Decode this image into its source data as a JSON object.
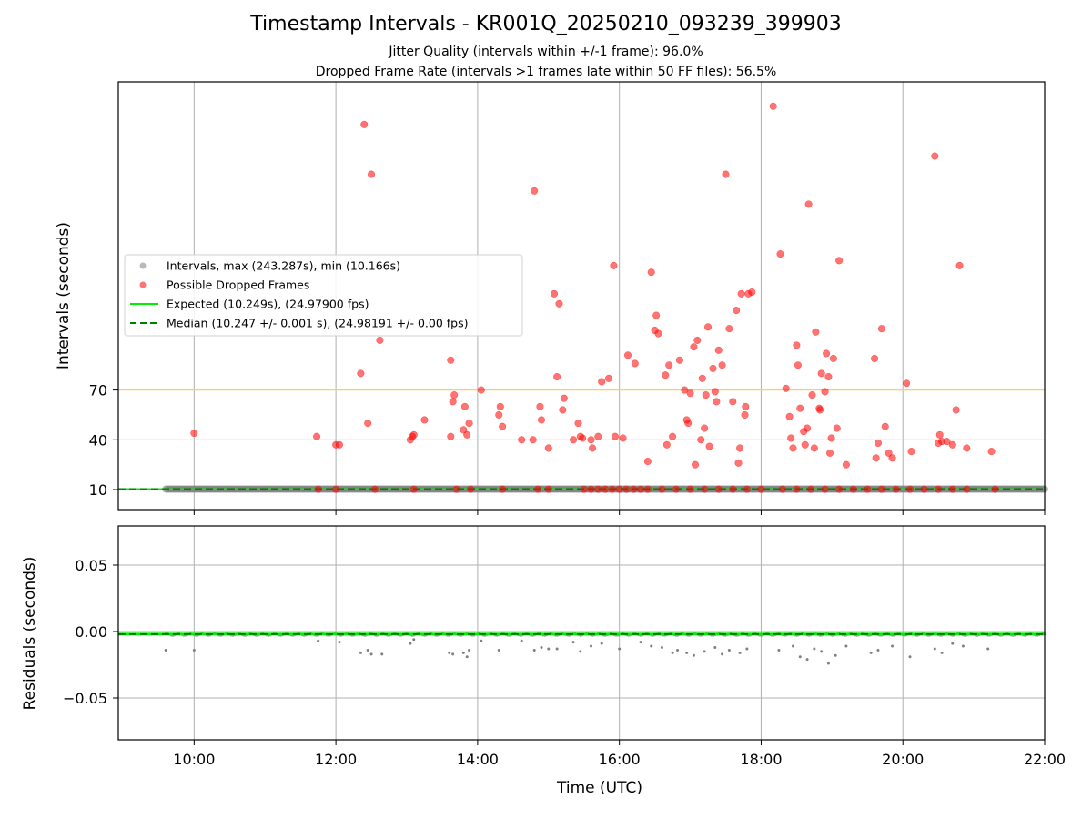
{
  "chart_data": [
    {
      "type": "scatter",
      "title": "Timestamp Intervals - KR001Q_20250210_093239_399903",
      "subtitle_1": "Jitter Quality (intervals within +/-1 frame): 96.0%",
      "subtitle_2": "Dropped Frame Rate (intervals >1 frames late within 50 FF files): 56.5%",
      "ylabel": "Intervals (seconds)",
      "x_range_hours": [
        8.93,
        22.0
      ],
      "ylim": [
        0,
        255
      ],
      "yticks": [
        10,
        40,
        70
      ],
      "threshold_lines": [
        40,
        70
      ],
      "threshold_color": "#ffcc66",
      "legend_placement": "center-left",
      "series": [
        {
          "name": "Intervals, max (243.287s), min (10.166s)",
          "kind": "points",
          "color": "#808080",
          "x_range_hours": [
            9.6,
            22.0
          ],
          "y": 10.249
        },
        {
          "name": "Possible Dropped Frames",
          "kind": "points",
          "color": "#ff0000",
          "points": [
            [
              10.0,
              44
            ],
            [
              11.73,
              42
            ],
            [
              12.0,
              37
            ],
            [
              12.05,
              37
            ],
            [
              12.35,
              80
            ],
            [
              12.4,
              230
            ],
            [
              12.45,
              50
            ],
            [
              12.5,
              200
            ],
            [
              12.62,
              100
            ],
            [
              13.05,
              40
            ],
            [
              13.08,
              42
            ],
            [
              13.1,
              43
            ],
            [
              13.25,
              52
            ],
            [
              13.62,
              42
            ],
            [
              13.62,
              88
            ],
            [
              13.65,
              63
            ],
            [
              13.67,
              67
            ],
            [
              13.8,
              46
            ],
            [
              13.82,
              60
            ],
            [
              13.85,
              43
            ],
            [
              13.88,
              50
            ],
            [
              14.05,
              70
            ],
            [
              14.3,
              55
            ],
            [
              14.32,
              60
            ],
            [
              14.35,
              48
            ],
            [
              14.62,
              40
            ],
            [
              14.78,
              40
            ],
            [
              14.8,
              190
            ],
            [
              14.88,
              60
            ],
            [
              14.9,
              52
            ],
            [
              15.0,
              35
            ],
            [
              15.08,
              128
            ],
            [
              15.12,
              78
            ],
            [
              15.15,
              122
            ],
            [
              15.2,
              58
            ],
            [
              15.22,
              65
            ],
            [
              15.35,
              40
            ],
            [
              15.42,
              50
            ],
            [
              15.45,
              42
            ],
            [
              15.48,
              41
            ],
            [
              15.6,
              40
            ],
            [
              15.62,
              35
            ],
            [
              15.7,
              42
            ],
            [
              15.75,
              75
            ],
            [
              15.85,
              77
            ],
            [
              15.92,
              145
            ],
            [
              15.94,
              42
            ],
            [
              16.05,
              41
            ],
            [
              16.12,
              91
            ],
            [
              16.22,
              86
            ],
            [
              16.4,
              27
            ],
            [
              16.45,
              141
            ],
            [
              16.52,
              115
            ],
            [
              16.5,
              106
            ],
            [
              16.55,
              104
            ],
            [
              16.65,
              79
            ],
            [
              16.67,
              37
            ],
            [
              16.7,
              85
            ],
            [
              16.75,
              42
            ],
            [
              16.85,
              88
            ],
            [
              16.92,
              70
            ],
            [
              16.95,
              52
            ],
            [
              16.97,
              50
            ],
            [
              17.0,
              68
            ],
            [
              17.05,
              96
            ],
            [
              17.07,
              25
            ],
            [
              17.1,
              100
            ],
            [
              17.15,
              40
            ],
            [
              17.17,
              77
            ],
            [
              17.2,
              47
            ],
            [
              17.22,
              67
            ],
            [
              17.25,
              108
            ],
            [
              17.27,
              36
            ],
            [
              17.32,
              83
            ],
            [
              17.35,
              69
            ],
            [
              17.37,
              63
            ],
            [
              17.4,
              94
            ],
            [
              17.45,
              85
            ],
            [
              17.5,
              200
            ],
            [
              17.55,
              107
            ],
            [
              17.6,
              63
            ],
            [
              17.65,
              118
            ],
            [
              17.68,
              26
            ],
            [
              17.7,
              35
            ],
            [
              17.72,
              128
            ],
            [
              17.77,
              55
            ],
            [
              17.78,
              60
            ],
            [
              17.82,
              128
            ],
            [
              17.87,
              129
            ],
            [
              18.17,
              241
            ],
            [
              18.27,
              152
            ],
            [
              18.35,
              71
            ],
            [
              18.4,
              54
            ],
            [
              18.42,
              41
            ],
            [
              18.45,
              35
            ],
            [
              18.5,
              97
            ],
            [
              18.52,
              85
            ],
            [
              18.55,
              59
            ],
            [
              18.6,
              45
            ],
            [
              18.62,
              37
            ],
            [
              18.65,
              47
            ],
            [
              18.67,
              182
            ],
            [
              18.72,
              67
            ],
            [
              18.75,
              35
            ],
            [
              18.77,
              105
            ],
            [
              18.82,
              59
            ],
            [
              18.83,
              58
            ],
            [
              18.85,
              80
            ],
            [
              18.9,
              69
            ],
            [
              18.92,
              92
            ],
            [
              18.95,
              78
            ],
            [
              18.97,
              32
            ],
            [
              18.99,
              41
            ],
            [
              19.02,
              89
            ],
            [
              19.07,
              47
            ],
            [
              19.1,
              148
            ],
            [
              19.2,
              25
            ],
            [
              19.6,
              89
            ],
            [
              19.62,
              29
            ],
            [
              19.65,
              38
            ],
            [
              19.7,
              107
            ],
            [
              19.75,
              48
            ],
            [
              19.8,
              32
            ],
            [
              19.85,
              29
            ],
            [
              20.05,
              74
            ],
            [
              20.12,
              33
            ],
            [
              20.45,
              211
            ],
            [
              20.5,
              38
            ],
            [
              20.52,
              43
            ],
            [
              20.55,
              39
            ],
            [
              20.62,
              39
            ],
            [
              20.7,
              37
            ],
            [
              20.75,
              58
            ],
            [
              20.8,
              145
            ],
            [
              20.9,
              35
            ],
            [
              21.25,
              33
            ],
            [
              11.75,
              10.2
            ],
            [
              12.0,
              10.2
            ],
            [
              12.55,
              10.2
            ],
            [
              13.1,
              10.2
            ],
            [
              13.7,
              10.2
            ],
            [
              13.9,
              10.2
            ],
            [
              14.35,
              10.2
            ],
            [
              14.85,
              10.2
            ],
            [
              15.0,
              10.2
            ],
            [
              15.5,
              10.2
            ],
            [
              15.6,
              10.2
            ],
            [
              15.7,
              10.2
            ],
            [
              15.8,
              10.2
            ],
            [
              15.9,
              10.2
            ],
            [
              16.0,
              10.2
            ],
            [
              16.1,
              10.2
            ],
            [
              16.2,
              10.2
            ],
            [
              16.3,
              10.2
            ],
            [
              16.4,
              10.2
            ],
            [
              16.6,
              10.2
            ],
            [
              16.8,
              10.2
            ],
            [
              17.0,
              10.2
            ],
            [
              17.2,
              10.2
            ],
            [
              17.4,
              10.2
            ],
            [
              17.6,
              10.2
            ],
            [
              17.8,
              10.2
            ],
            [
              18.0,
              10.2
            ],
            [
              18.3,
              10.2
            ],
            [
              18.5,
              10.2
            ],
            [
              18.7,
              10.2
            ],
            [
              18.9,
              10.2
            ],
            [
              19.1,
              10.2
            ],
            [
              19.3,
              10.2
            ],
            [
              19.5,
              10.2
            ],
            [
              19.7,
              10.2
            ],
            [
              19.9,
              10.2
            ],
            [
              20.1,
              10.2
            ],
            [
              20.3,
              10.2
            ],
            [
              20.5,
              10.2
            ],
            [
              20.7,
              10.2
            ],
            [
              20.9,
              10.2
            ],
            [
              21.3,
              10.2
            ]
          ]
        },
        {
          "name": "Expected (10.249s), (24.97900 fps)",
          "kind": "line",
          "color": "#00ee00",
          "y": 10.249
        },
        {
          "name": "Median (10.247 +/- 0.001 s), (24.98191 +/- 0.00 fps)",
          "kind": "dashed-line",
          "color": "#008000",
          "y": 10.247
        }
      ]
    },
    {
      "type": "scatter",
      "ylabel": "Residuals (seconds)",
      "xlabel": "Time (UTC)",
      "x_range_hours": [
        8.93,
        22.0
      ],
      "ylim": [
        -0.08,
        0.08
      ],
      "yticks": [
        0.05,
        0.0,
        -0.05
      ],
      "ytick_labels": [
        "0.05",
        "0.00",
        "−0.05"
      ],
      "xticks": [
        10,
        12,
        14,
        16,
        18,
        20,
        22
      ],
      "xtick_labels": [
        "10:00",
        "12:00",
        "14:00",
        "16:00",
        "18:00",
        "20:00",
        "22:00"
      ],
      "grid": true,
      "series": [
        {
          "kind": "points",
          "color": "#808080",
          "points": [
            [
              9.6,
              -0.014
            ],
            [
              10.0,
              -0.014
            ],
            [
              11.75,
              -0.007
            ],
            [
              12.05,
              -0.008
            ],
            [
              12.35,
              -0.016
            ],
            [
              12.45,
              -0.014
            ],
            [
              12.5,
              -0.017
            ],
            [
              12.65,
              -0.017
            ],
            [
              13.05,
              -0.009
            ],
            [
              13.1,
              -0.006
            ],
            [
              13.6,
              -0.016
            ],
            [
              13.65,
              -0.017
            ],
            [
              13.8,
              -0.016
            ],
            [
              13.85,
              -0.019
            ],
            [
              13.88,
              -0.014
            ],
            [
              14.05,
              -0.007
            ],
            [
              14.3,
              -0.014
            ],
            [
              14.62,
              -0.007
            ],
            [
              14.8,
              -0.014
            ],
            [
              14.9,
              -0.012
            ],
            [
              15.0,
              -0.013
            ],
            [
              15.12,
              -0.013
            ],
            [
              15.35,
              -0.008
            ],
            [
              15.45,
              -0.015
            ],
            [
              15.6,
              -0.011
            ],
            [
              15.75,
              -0.009
            ],
            [
              16.0,
              -0.013
            ],
            [
              16.3,
              -0.008
            ],
            [
              16.45,
              -0.011
            ],
            [
              16.6,
              -0.012
            ],
            [
              16.75,
              -0.016
            ],
            [
              16.82,
              -0.014
            ],
            [
              16.95,
              -0.016
            ],
            [
              17.05,
              -0.018
            ],
            [
              17.2,
              -0.015
            ],
            [
              17.35,
              -0.012
            ],
            [
              17.45,
              -0.017
            ],
            [
              17.55,
              -0.014
            ],
            [
              17.7,
              -0.016
            ],
            [
              17.8,
              -0.013
            ],
            [
              18.25,
              -0.014
            ],
            [
              18.45,
              -0.011
            ],
            [
              18.55,
              -0.019
            ],
            [
              18.65,
              -0.021
            ],
            [
              18.75,
              -0.013
            ],
            [
              18.85,
              -0.015
            ],
            [
              18.95,
              -0.024
            ],
            [
              19.05,
              -0.018
            ],
            [
              19.2,
              -0.011
            ],
            [
              19.55,
              -0.016
            ],
            [
              19.65,
              -0.014
            ],
            [
              19.85,
              -0.011
            ],
            [
              20.1,
              -0.019
            ],
            [
              20.45,
              -0.013
            ],
            [
              20.55,
              -0.016
            ],
            [
              20.7,
              -0.009
            ],
            [
              20.85,
              -0.011
            ],
            [
              21.2,
              -0.013
            ]
          ]
        },
        {
          "kind": "line",
          "color": "#00ee00",
          "y": -0.002
        },
        {
          "kind": "dashed-line",
          "color": "#008000",
          "y": -0.002
        }
      ]
    }
  ]
}
